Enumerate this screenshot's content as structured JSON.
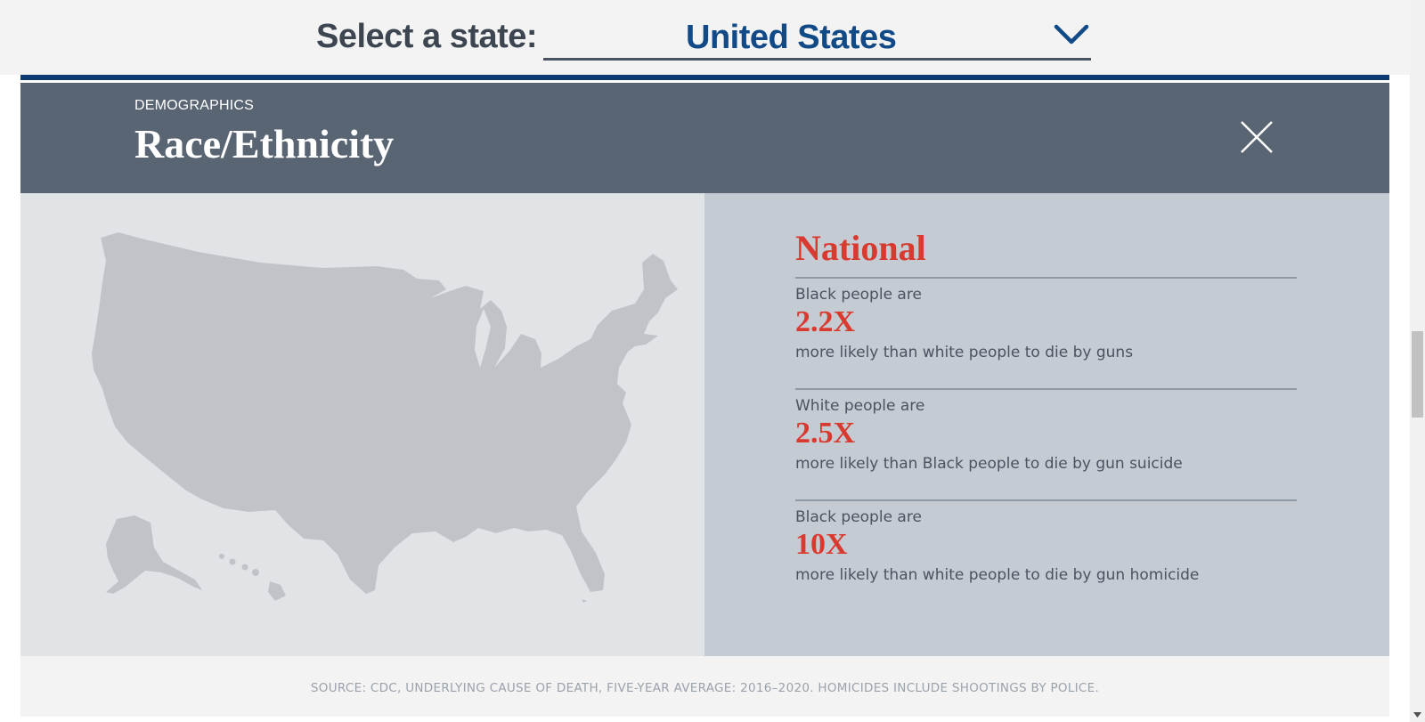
{
  "selector": {
    "label": "Select a state:",
    "selected_value": "United States",
    "chevron_icon": "chevron-down-icon"
  },
  "panel": {
    "eyebrow": "DEMOGRAPHICS",
    "title": "Race/Ethnicity",
    "close_icon": "close-icon"
  },
  "map": {
    "icon": "us-map-icon",
    "fill_color": "#c0c4c8"
  },
  "region": {
    "title": "National",
    "stats": [
      {
        "intro": "Black people are",
        "value": "2.2X",
        "outro": "more likely than white people to die by guns"
      },
      {
        "intro": "White people are",
        "value": "2.5X",
        "outro": "more likely than Black people to die by gun suicide"
      },
      {
        "intro": "Black people are",
        "value": "10X",
        "outro": "more likely than white people to die by gun homicide"
      }
    ]
  },
  "footer": {
    "source": "SOURCE: CDC, UNDERLYING CAUSE OF DEATH, FIVE-YEAR AVERAGE: 2016–2020. HOMICIDES INCLUDE SHOOTINGS BY POLICE."
  },
  "colors": {
    "accent_red": "#d83a2f",
    "brand_blue": "#114a86",
    "rule_navy": "#0b3b70",
    "header_slate": "#5a6574"
  }
}
